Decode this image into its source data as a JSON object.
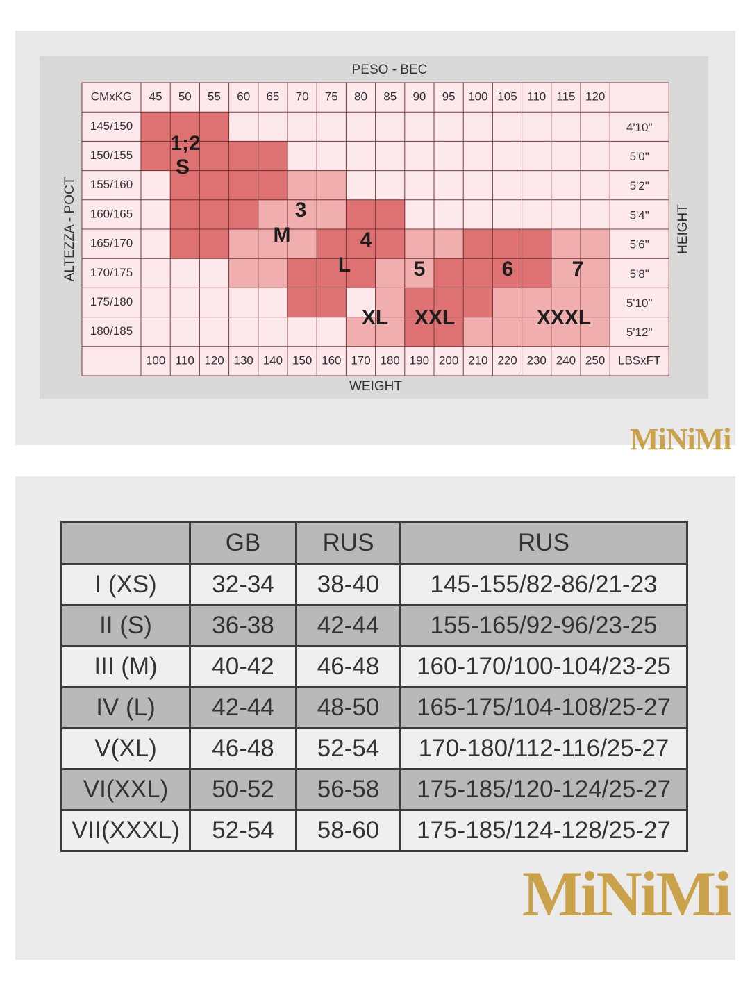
{
  "chart_data": {
    "type": "table",
    "top_label": "PESO - BEC",
    "bottom_label": "WEIGHT",
    "left_label": "ALTEZZA - POCT",
    "right_label": "HEIGHT",
    "corner_top_left": "CMxKG",
    "corner_bottom_right": "LBSxFT",
    "kg_ticks": [
      "45",
      "50",
      "55",
      "60",
      "65",
      "70",
      "75",
      "80",
      "85",
      "90",
      "95",
      "100",
      "105",
      "110",
      "115",
      "120"
    ],
    "lbs_ticks": [
      "100",
      "110",
      "120",
      "130",
      "140",
      "150",
      "160",
      "170",
      "180",
      "190",
      "200",
      "210",
      "220",
      "230",
      "240",
      "250"
    ],
    "cm_rows": [
      "145/150",
      "150/155",
      "155/160",
      "160/165",
      "165/170",
      "170/175",
      "175/180",
      "180/185"
    ],
    "ft_rows": [
      "4'10\"",
      "5'0\"",
      "5'2\"",
      "5'4\"",
      "5'6\"",
      "5'8\"",
      "5'10\"",
      "5'12\""
    ],
    "sizes": [
      {
        "number": "1;2",
        "letter": "S",
        "color": "#de7272"
      },
      {
        "number": "3",
        "letter": "M",
        "color": "#f0aeae"
      },
      {
        "number": "4",
        "letter": "L",
        "color": "#de7272"
      },
      {
        "number": "5",
        "letter": "XL",
        "color": "#f0aeae"
      },
      {
        "number": "6",
        "letter": "XXL",
        "color": "#de7272"
      },
      {
        "number": "7",
        "letter": "XXXL",
        "color": "#f0aeae"
      }
    ]
  },
  "brand": {
    "logo": "MiNiMi",
    "color": "#c9a24a"
  },
  "size_table": {
    "headers": [
      "",
      "GB",
      "RUS",
      "RUS"
    ],
    "rows": [
      [
        "I (XS)",
        "32-34",
        "38-40",
        "145-155/82-86/21-23"
      ],
      [
        "II (S)",
        "36-38",
        "42-44",
        "155-165/92-96/23-25"
      ],
      [
        "III (M)",
        "40-42",
        "46-48",
        "160-170/100-104/23-25"
      ],
      [
        "IV (L)",
        "42-44",
        "48-50",
        "165-175/104-108/25-27"
      ],
      [
        "V(XL)",
        "46-48",
        "52-54",
        "170-180/112-116/25-27"
      ],
      [
        "VI(XXL)",
        "50-52",
        "56-58",
        "175-185/120-124/25-27"
      ],
      [
        "VII(XXXL)",
        "52-54",
        "58-60",
        "175-185/124-128/25-27"
      ]
    ]
  }
}
